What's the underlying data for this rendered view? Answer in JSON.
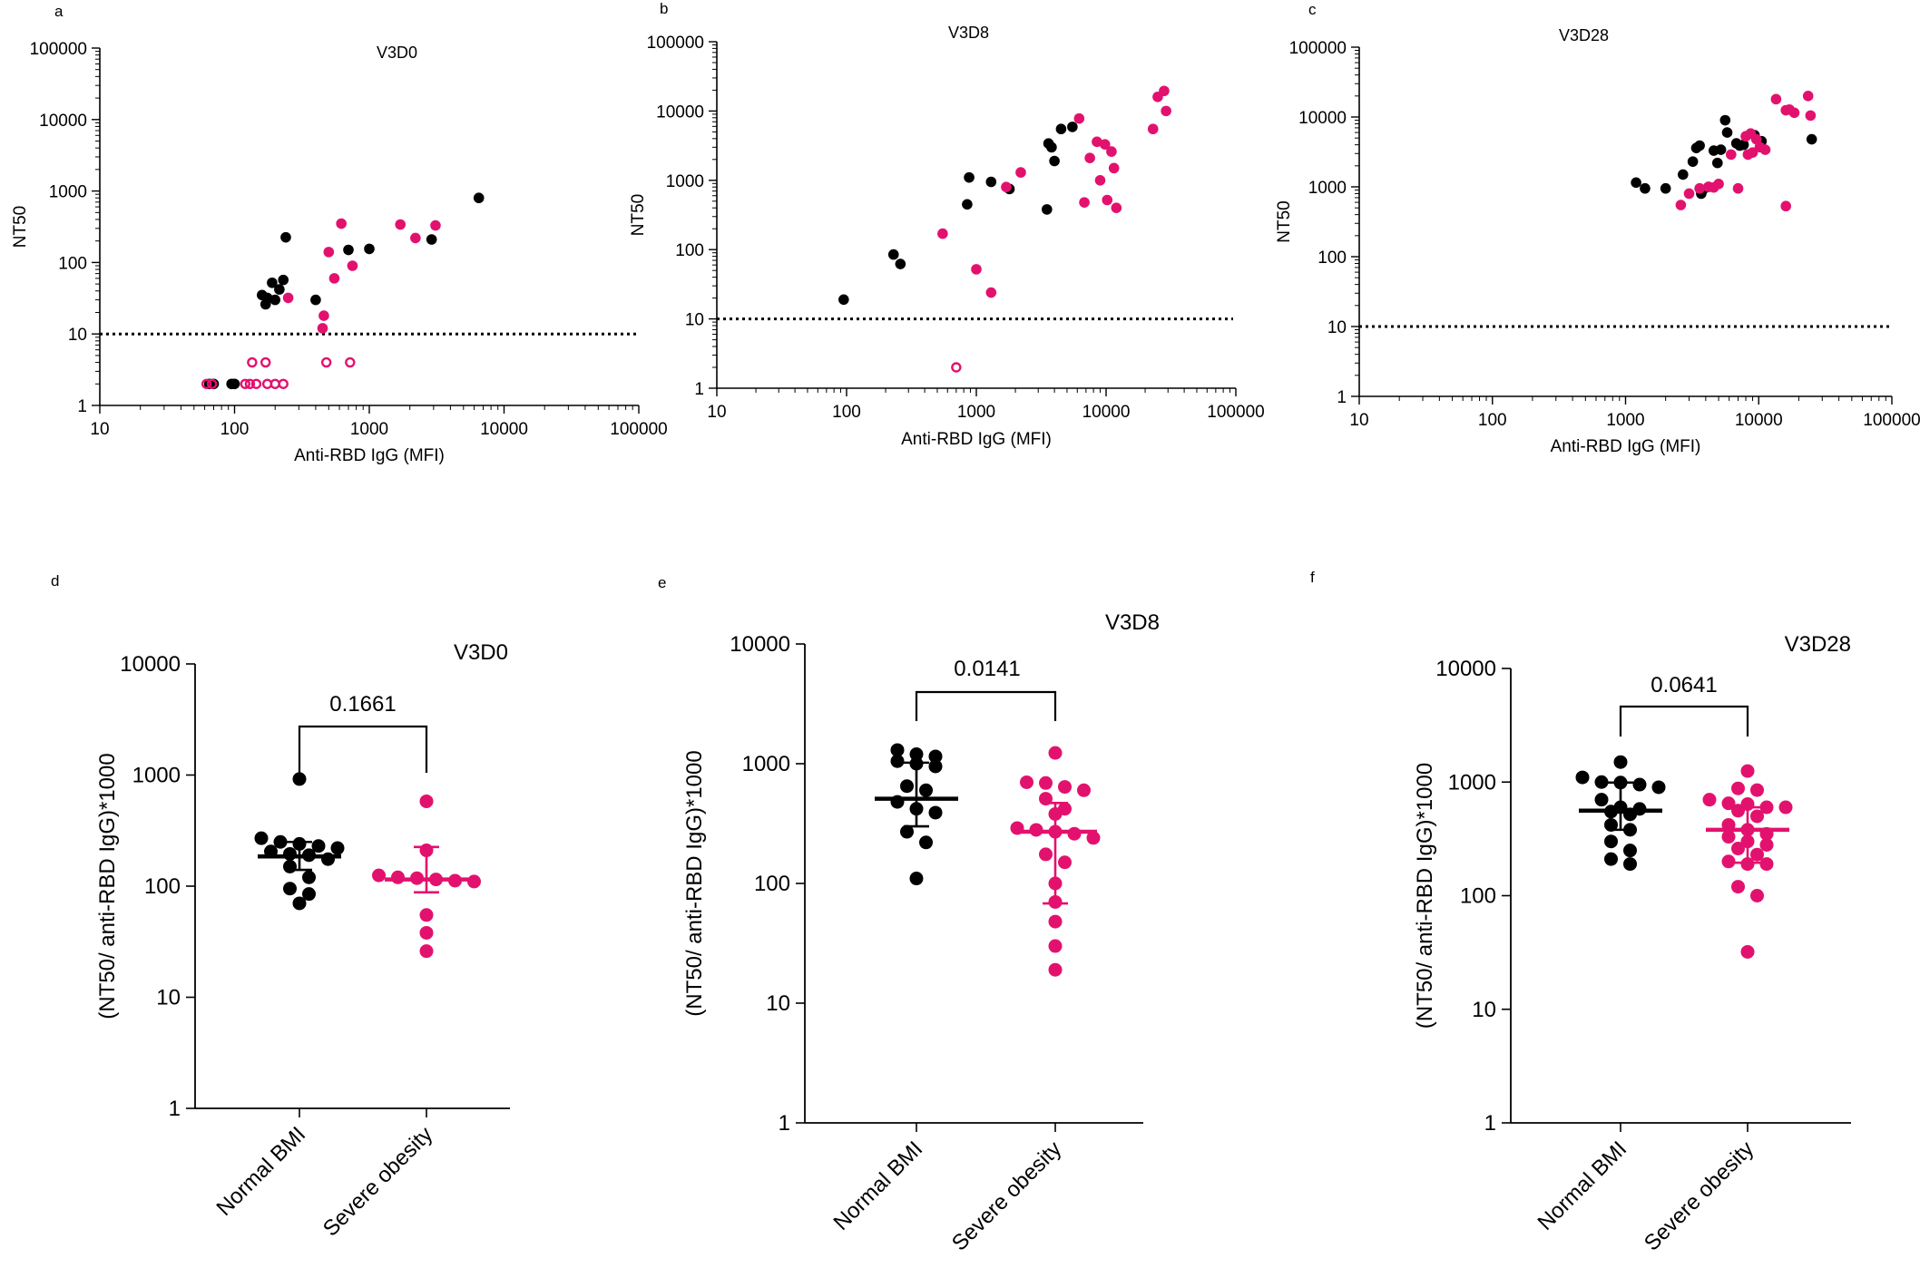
{
  "colors": {
    "normal": "#000000",
    "obese": "#e3116e"
  },
  "chart_data": [
    {
      "panel": "a",
      "type": "scatter",
      "title": "V3D0",
      "xlabel": "Anti-RBD IgG  (MFI)",
      "ylabel": "NT50",
      "xscale": "log",
      "yscale": "log",
      "xlim": [
        10,
        100000
      ],
      "ylim": [
        1,
        100000
      ],
      "xticks": [
        "10",
        "100",
        "1000",
        "10000",
        "100000"
      ],
      "yticks": [
        "1",
        "10",
        "100",
        "1000",
        "10000",
        "100000"
      ],
      "threshold": 10,
      "series": [
        {
          "name": "Normal BMI",
          "color": "#000000",
          "points": [
            [
              65,
              2
            ],
            [
              70,
              2
            ],
            [
              95,
              2
            ],
            [
              100,
              2
            ],
            [
              160,
              35
            ],
            [
              175,
              32
            ],
            [
              170,
              26
            ],
            [
              190,
              52
            ],
            [
              200,
              30
            ],
            [
              215,
              42
            ],
            [
              230,
              57
            ],
            [
              240,
              225
            ],
            [
              400,
              30
            ],
            [
              700,
              150
            ],
            [
              1000,
              155
            ],
            [
              2900,
              210
            ],
            [
              6500,
              800
            ]
          ]
        },
        {
          "name": "Severe obesity",
          "color": "#e3116e",
          "points": [
            [
              250,
              32
            ],
            [
              450,
              12
            ],
            [
              460,
              18
            ],
            [
              500,
              140
            ],
            [
              550,
              60
            ],
            [
              620,
              350
            ],
            [
              750,
              90
            ],
            [
              1700,
              340
            ],
            [
              2200,
              220
            ],
            [
              3100,
              330
            ]
          ]
        },
        {
          "name": "Severe obesity (below threshold)",
          "color": "#e3116e",
          "hollow": true,
          "points": [
            [
              62,
              2
            ],
            [
              68,
              2
            ],
            [
              120,
              2
            ],
            [
              130,
              2
            ],
            [
              145,
              2
            ],
            [
              135,
              4
            ],
            [
              170,
              4
            ],
            [
              175,
              2
            ],
            [
              200,
              2
            ],
            [
              230,
              2
            ],
            [
              480,
              4
            ],
            [
              720,
              4
            ]
          ]
        }
      ]
    },
    {
      "panel": "b",
      "type": "scatter",
      "title": "V3D8",
      "xlabel": "Anti-RBD IgG (MFI)",
      "ylabel": "NT50",
      "xscale": "log",
      "yscale": "log",
      "xlim": [
        10,
        100000
      ],
      "ylim": [
        1,
        100000
      ],
      "xticks": [
        "10",
        "100",
        "1000",
        "10000",
        "100000"
      ],
      "yticks": [
        "1",
        "10",
        "100",
        "1000",
        "10000",
        "100000"
      ],
      "threshold": 10,
      "series": [
        {
          "name": "Normal BMI",
          "color": "#000000",
          "points": [
            [
              95,
              19
            ],
            [
              230,
              85
            ],
            [
              260,
              62
            ],
            [
              850,
              450
            ],
            [
              880,
              1100
            ],
            [
              1300,
              950
            ],
            [
              1800,
              750
            ],
            [
              3500,
              380
            ],
            [
              3600,
              3400
            ],
            [
              3800,
              3000
            ],
            [
              4000,
              1900
            ],
            [
              4500,
              5500
            ],
            [
              5500,
              5900
            ]
          ]
        },
        {
          "name": "Severe obesity",
          "color": "#e3116e",
          "points": [
            [
              550,
              170
            ],
            [
              1000,
              52
            ],
            [
              1300,
              24
            ],
            [
              1700,
              800
            ],
            [
              2200,
              1300
            ],
            [
              6200,
              7800
            ],
            [
              6800,
              480
            ],
            [
              7500,
              2100
            ],
            [
              8500,
              3600
            ],
            [
              9000,
              1000
            ],
            [
              9800,
              3300
            ],
            [
              10200,
              520
            ],
            [
              11000,
              2600
            ],
            [
              11500,
              1500
            ],
            [
              12000,
              400
            ],
            [
              23000,
              5500
            ],
            [
              25000,
              16000
            ],
            [
              28000,
              19500
            ],
            [
              29000,
              10000
            ]
          ]
        },
        {
          "name": "Severe obesity (below threshold)",
          "color": "#e3116e",
          "hollow": true,
          "points": [
            [
              700,
              2
            ]
          ]
        }
      ]
    },
    {
      "panel": "c",
      "type": "scatter",
      "title": "V3D28",
      "xlabel": "Anti-RBD IgG (MFI)",
      "ylabel": "NT50",
      "xscale": "log",
      "yscale": "log",
      "xlim": [
        10,
        100000
      ],
      "ylim": [
        1,
        100000
      ],
      "xticks": [
        "10",
        "100",
        "1000",
        "10000",
        "100000"
      ],
      "yticks": [
        "1",
        "10",
        "100",
        "1000",
        "10000",
        "100000"
      ],
      "threshold": 10,
      "series": [
        {
          "name": "Normal BMI",
          "color": "#000000",
          "points": [
            [
              1200,
              1150
            ],
            [
              1400,
              950
            ],
            [
              2000,
              950
            ],
            [
              2700,
              1500
            ],
            [
              3200,
              2300
            ],
            [
              3400,
              3600
            ],
            [
              3600,
              3900
            ],
            [
              3700,
              800
            ],
            [
              3800,
              900
            ],
            [
              4200,
              1000
            ],
            [
              4600,
              3300
            ],
            [
              4900,
              2200
            ],
            [
              5200,
              3400
            ],
            [
              5600,
              9000
            ],
            [
              5800,
              6000
            ],
            [
              6800,
              4200
            ],
            [
              7200,
              3900
            ],
            [
              7700,
              4000
            ],
            [
              9300,
              5500
            ],
            [
              10500,
              4500
            ],
            [
              25000,
              4800
            ]
          ]
        },
        {
          "name": "Severe obesity",
          "color": "#e3116e",
          "points": [
            [
              2600,
              550
            ],
            [
              3000,
              800
            ],
            [
              3600,
              950
            ],
            [
              4200,
              1000
            ],
            [
              4600,
              980
            ],
            [
              5000,
              1100
            ],
            [
              6200,
              2900
            ],
            [
              7000,
              950
            ],
            [
              8000,
              5300
            ],
            [
              8300,
              2900
            ],
            [
              8700,
              5800
            ],
            [
              9000,
              3100
            ],
            [
              9600,
              4800
            ],
            [
              10200,
              3700
            ],
            [
              11200,
              3400
            ],
            [
              13500,
              18000
            ],
            [
              16000,
              12500
            ],
            [
              17000,
              12800
            ],
            [
              18500,
              11500
            ],
            [
              16000,
              530
            ],
            [
              23500,
              20000
            ],
            [
              24500,
              10500
            ]
          ]
        }
      ]
    },
    {
      "panel": "d",
      "type": "scatter",
      "title": "V3D0",
      "ylabel": "(NT50/ anti-RBD IgG)*1000",
      "yscale": "log",
      "ylim": [
        1,
        10000
      ],
      "yticks": [
        "1",
        "10",
        "100",
        "1000",
        "10000"
      ],
      "categories": [
        "Normal BMI",
        "Severe obesity"
      ],
      "p_value": "0.1661",
      "series": [
        {
          "name": "Normal BMI",
          "color": "#000000",
          "median": 185,
          "q1": 140,
          "q3": 250,
          "values": [
            920,
            270,
            250,
            240,
            230,
            220,
            205,
            195,
            190,
            175,
            150,
            120,
            95,
            85,
            70
          ]
        },
        {
          "name": "Severe obesity",
          "color": "#e3116e",
          "median": 115,
          "q1": 88,
          "q3": 225,
          "values": [
            580,
            210,
            125,
            120,
            118,
            115,
            112,
            110,
            55,
            38,
            26
          ]
        }
      ]
    },
    {
      "panel": "e",
      "type": "scatter",
      "title": "V3D8",
      "ylabel": "(NT50/ anti-RBD IgG)*1000",
      "yscale": "log",
      "ylim": [
        1,
        10000
      ],
      "yticks": [
        "1",
        "10",
        "100",
        "1000",
        "10000"
      ],
      "categories": [
        "Normal BMI",
        "Severe obesity"
      ],
      "p_value": "0.0141",
      "series": [
        {
          "name": "Normal BMI",
          "color": "#000000",
          "median": 510,
          "q1": 300,
          "q3": 1020,
          "values": [
            1300,
            1200,
            1150,
            1050,
            1000,
            950,
            650,
            600,
            480,
            420,
            390,
            270,
            220,
            110
          ]
        },
        {
          "name": "Severe obesity",
          "color": "#e3116e",
          "median": 270,
          "q1": 68,
          "q3": 470,
          "values": [
            1230,
            700,
            690,
            640,
            600,
            510,
            420,
            380,
            290,
            280,
            270,
            260,
            240,
            175,
            150,
            100,
            70,
            48,
            30,
            19
          ]
        }
      ]
    },
    {
      "panel": "f",
      "type": "scatter",
      "title": "V3D28",
      "ylabel": "(NT50/ anti-RBD IgG)*1000",
      "yscale": "log",
      "ylim": [
        1,
        10000
      ],
      "yticks": [
        "1",
        "10",
        "100",
        "1000",
        "10000"
      ],
      "categories": [
        "Normal BMI",
        "Severe obesity"
      ],
      "p_value": "0.0641",
      "series": [
        {
          "name": "Normal BMI",
          "color": "#000000",
          "median": 560,
          "q1": 380,
          "q3": 990,
          "values": [
            1500,
            1100,
            1000,
            990,
            950,
            900,
            700,
            600,
            580,
            550,
            520,
            420,
            380,
            300,
            250,
            210,
            190
          ]
        },
        {
          "name": "Severe obesity",
          "color": "#e3116e",
          "median": 380,
          "q1": 195,
          "q3": 600,
          "values": [
            1250,
            880,
            850,
            700,
            650,
            640,
            600,
            600,
            560,
            500,
            420,
            380,
            350,
            330,
            300,
            280,
            260,
            230,
            200,
            190,
            190,
            120,
            100,
            32
          ]
        }
      ]
    }
  ]
}
